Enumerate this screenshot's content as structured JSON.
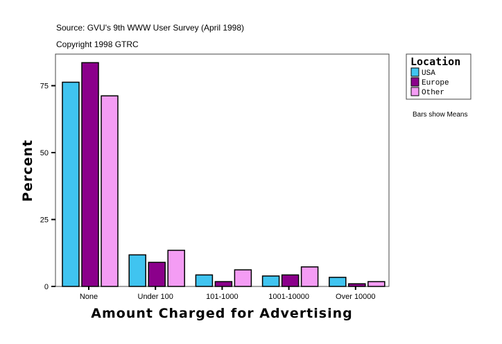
{
  "chart_data": {
    "type": "bar",
    "title": "Source: GVU's 9th WWW User Survey (April 1998)",
    "subtitle": "Copyright 1998 GTRC",
    "xlabel": "Amount Charged for Advertising",
    "ylabel": "Percent",
    "categories": [
      "None",
      "Under 100",
      "101-1000",
      "1001-10000",
      "Over 10000"
    ],
    "series": [
      {
        "name": "USA",
        "color": "#40c4f0",
        "values": [
          76.3,
          11.8,
          4.3,
          3.9,
          3.4
        ]
      },
      {
        "name": "Europe",
        "color": "#8b008b",
        "values": [
          83.6,
          9.0,
          1.8,
          4.3,
          1.0
        ]
      },
      {
        "name": "Other",
        "color": "#f49cf4",
        "values": [
          71.2,
          13.5,
          6.2,
          7.3,
          1.8
        ]
      }
    ],
    "yticks": [
      0,
      25,
      50,
      75
    ],
    "ylim": [
      0,
      86.8
    ],
    "grid": false,
    "legend": {
      "title": "Location",
      "placement": "right"
    },
    "note": "Bars show Means"
  }
}
